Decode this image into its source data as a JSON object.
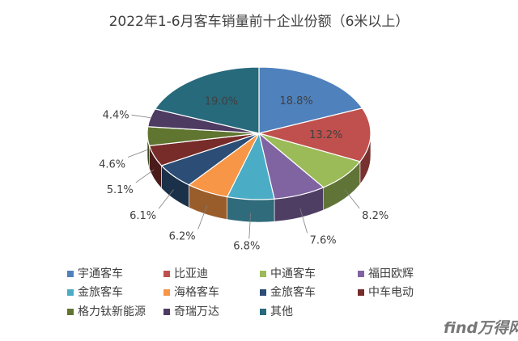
{
  "chart_data": {
    "type": "pie",
    "title": "2022年1-6月客车销量前十企业份额（6米以上）",
    "categories": [
      "宇通客车",
      "比亚迪",
      "中通客车",
      "福田欧辉",
      "金旅客车",
      "海格客车",
      "金旅客车",
      "中车电动",
      "格力钛新能源",
      "奇瑞万达",
      "其他"
    ],
    "values": [
      18.8,
      13.2,
      8.2,
      7.6,
      6.8,
      6.2,
      6.1,
      5.1,
      4.6,
      4.4,
      19.0
    ],
    "value_labels": [
      "18.8%",
      "13.2%",
      "8.2%",
      "7.6%",
      "6.8%",
      "6.2%",
      "6.1%",
      "5.1%",
      "4.6%",
      "4.4%",
      "19.0%"
    ],
    "colors": [
      "#4f81bd",
      "#c0504d",
      "#9bbb59",
      "#8064a2",
      "#4bacc6",
      "#f79646",
      "#2c4d75",
      "#772c2a",
      "#5f7530",
      "#4d3b62",
      "#276a7c"
    ],
    "start_angle_deg": -90,
    "legend_position": "bottom",
    "rendering": "3d"
  },
  "watermark": "find万得网"
}
